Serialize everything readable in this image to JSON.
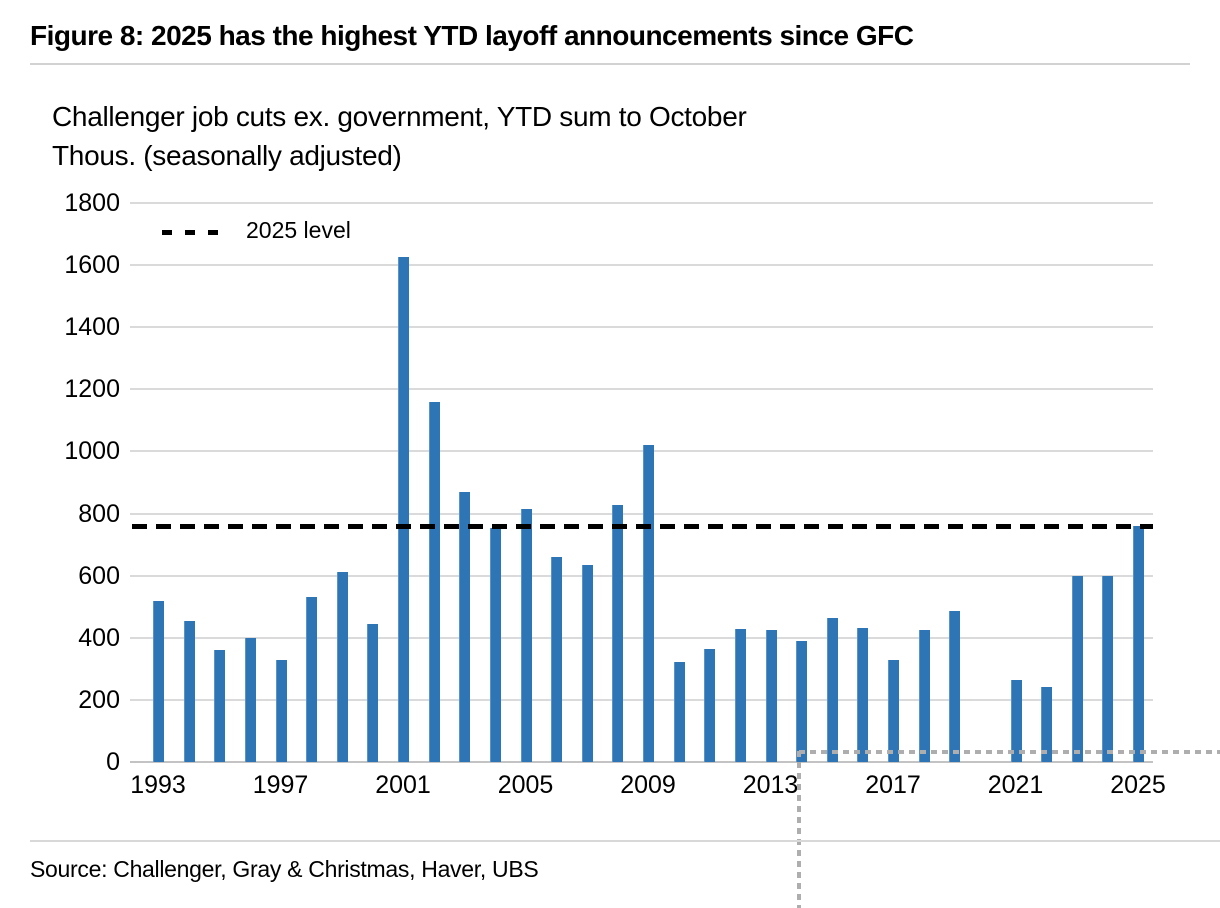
{
  "figure": {
    "title": "Figure 8: 2025 has the highest YTD layoff announcements since GFC",
    "subtitle_line1": "Challenger job cuts ex. government, YTD sum to October",
    "subtitle_line2": "Thous. (seasonally adjusted)",
    "source": "Source: Challenger, Gray & Christmas, Haver, UBS"
  },
  "legend": {
    "label": "2025 level"
  },
  "colors": {
    "bar": "#2e75b6",
    "gridline": "#dadada",
    "axis_line": "#c3c3c3",
    "level_line": "#000000",
    "crosshair": "#aeaeae",
    "rule": "#d2d2d2"
  },
  "chart_data": {
    "type": "bar",
    "title": "Challenger job cuts ex. government, YTD sum to October",
    "ylabel": "Thous. (seasonally adjusted)",
    "ylim": [
      0,
      1800
    ],
    "ytick_step": 200,
    "yticks": [
      0,
      200,
      400,
      600,
      800,
      1000,
      1200,
      1400,
      1600,
      1800
    ],
    "grid": "horizontal",
    "legend_position": "top-left",
    "categories": [
      1993,
      1994,
      1995,
      1996,
      1997,
      1998,
      1999,
      2000,
      2001,
      2002,
      2003,
      2004,
      2005,
      2006,
      2007,
      2008,
      2009,
      2010,
      2011,
      2012,
      2013,
      2014,
      2015,
      2016,
      2017,
      2018,
      2019,
      2020,
      2021,
      2022,
      2023,
      2024,
      2025
    ],
    "values": [
      520,
      455,
      360,
      400,
      330,
      530,
      612,
      445,
      1625,
      1160,
      870,
      755,
      815,
      660,
      635,
      828,
      1022,
      322,
      365,
      428,
      425,
      390,
      463,
      430,
      330,
      425,
      485,
      null,
      265,
      240,
      600,
      600,
      760
    ],
    "xtick_labels": [
      "1993",
      "1997",
      "2001",
      "2005",
      "2009",
      "2013",
      "2017",
      "2021",
      "2025"
    ],
    "level_line": {
      "label": "2025 level",
      "value": 760
    },
    "note": "No bar shown for 2020"
  }
}
